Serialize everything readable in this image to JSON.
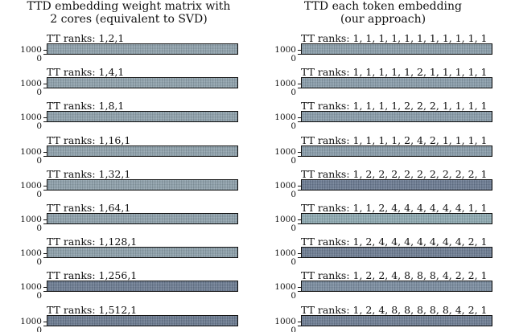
{
  "chart_data": [
    {
      "type": "heatmap",
      "title": "TTD embedding weight matrix with\n2 cores (equivalent to SVD)",
      "title_lines": [
        "TTD embedding weight matrix with",
        "2 cores (equivalent to SVD)"
      ],
      "y_ticks": [
        "1000",
        "0"
      ],
      "panels": [
        {
          "title": "TT ranks: 1,2,1",
          "color": "#8ea2ac"
        },
        {
          "title": "TT ranks: 1,4,1",
          "color": "#8ea2ac"
        },
        {
          "title": "TT ranks: 1,8,1",
          "color": "#8ea2ac"
        },
        {
          "title": "TT ranks: 1,16,1",
          "color": "#8ea2ac"
        },
        {
          "title": "TT ranks: 1,32,1",
          "color": "#8da0ab"
        },
        {
          "title": "TT ranks: 1,64,1",
          "color": "#8ea2ac"
        },
        {
          "title": "TT ranks: 1,128,1",
          "color": "#8ca0ab"
        },
        {
          "title": "TT ranks: 1,256,1",
          "color": "#6b7b92"
        },
        {
          "title": "TT ranks: 1,512,1",
          "color": "#6a7a90"
        }
      ]
    },
    {
      "type": "heatmap",
      "title": "TTD each token embedding\n(our approach)",
      "title_lines": [
        "TTD each token embedding",
        "(our approach)"
      ],
      "y_ticks": [
        "1000",
        "0"
      ],
      "panels": [
        {
          "title": "TT ranks: 1, 1, 1, 1, 1, 1, 1, 1, 1, 1, 1",
          "color": "#8a9eab"
        },
        {
          "title": "TT ranks: 1, 1, 1, 1, 1, 2, 1, 1, 1, 1, 1",
          "color": "#899dab"
        },
        {
          "title": "TT ranks: 1, 1, 1, 1, 2, 2, 2, 1, 1, 1, 1",
          "color": "#899dab"
        },
        {
          "title": "TT ranks: 1, 1, 1, 1, 2, 4, 2, 1, 1, 1, 1",
          "color": "#889caa"
        },
        {
          "title": "TT ranks: 1, 2, 2, 2, 2, 2, 2, 2, 2, 2, 1",
          "color": "#6a7a92"
        },
        {
          "title": "TT ranks: 1, 1, 2, 4, 4, 4, 4, 4, 4, 1, 1",
          "color": "#8eaab2"
        },
        {
          "title": "TT ranks: 1, 2, 4, 4, 4, 4, 4, 4, 4, 2, 1",
          "color": "#6c7c93"
        },
        {
          "title": "TT ranks: 1, 2, 2, 4, 8, 8, 8, 4, 2, 2, 1",
          "color": "#7a8ca0"
        },
        {
          "title": "TT ranks: 1, 2, 4, 8, 8, 8, 8, 8, 4, 2, 1",
          "color": "#6d7d94"
        }
      ]
    }
  ]
}
